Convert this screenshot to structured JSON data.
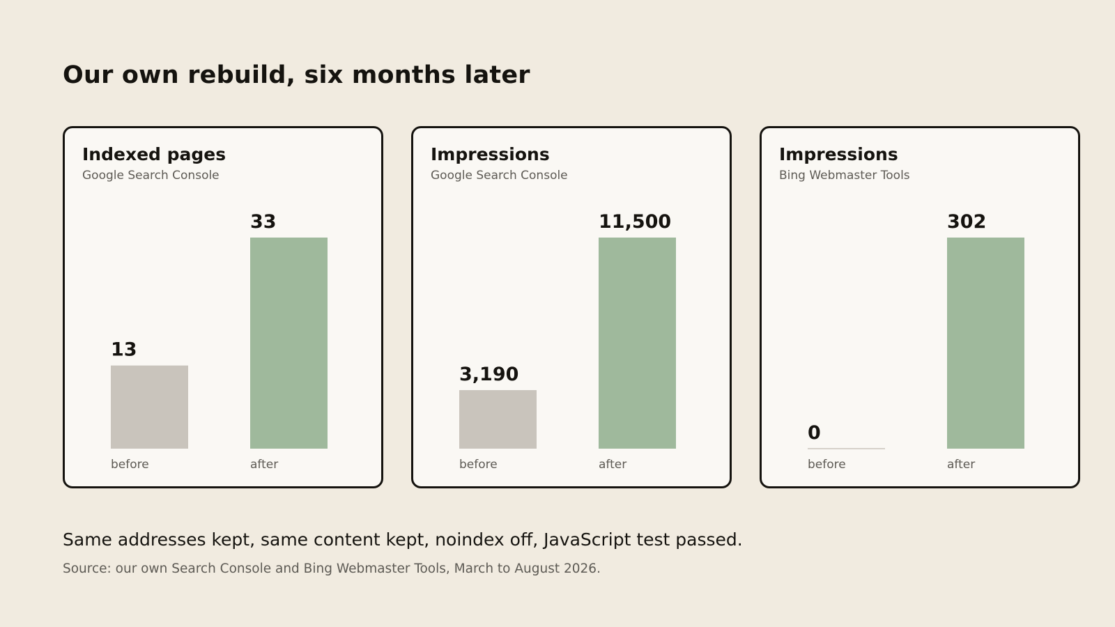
{
  "title": "Our own rebuild, six months later",
  "caption": "Same addresses kept, same content kept, noindex off, JavaScript test passed.",
  "source_note": "Source: our own Search Console and Bing Webmaster Tools, March to August 2026.",
  "colors": {
    "before": "#c9c4bc",
    "after": "#9fb99c",
    "baseline": "#c9c4bc"
  },
  "chart_data": [
    {
      "type": "bar",
      "title": "Indexed pages",
      "subtitle": "Google Search Console",
      "categories": [
        "before",
        "after"
      ],
      "values": [
        13,
        33
      ],
      "value_labels": [
        "13",
        "33"
      ]
    },
    {
      "type": "bar",
      "title": "Impressions",
      "subtitle": "Google Search Console",
      "categories": [
        "before",
        "after"
      ],
      "values": [
        3190,
        11500
      ],
      "value_labels": [
        "3,190",
        "11,500"
      ]
    },
    {
      "type": "bar",
      "title": "Impressions",
      "subtitle": "Bing Webmaster Tools",
      "categories": [
        "before",
        "after"
      ],
      "values": [
        0,
        302
      ],
      "value_labels": [
        "0",
        "302"
      ]
    }
  ]
}
